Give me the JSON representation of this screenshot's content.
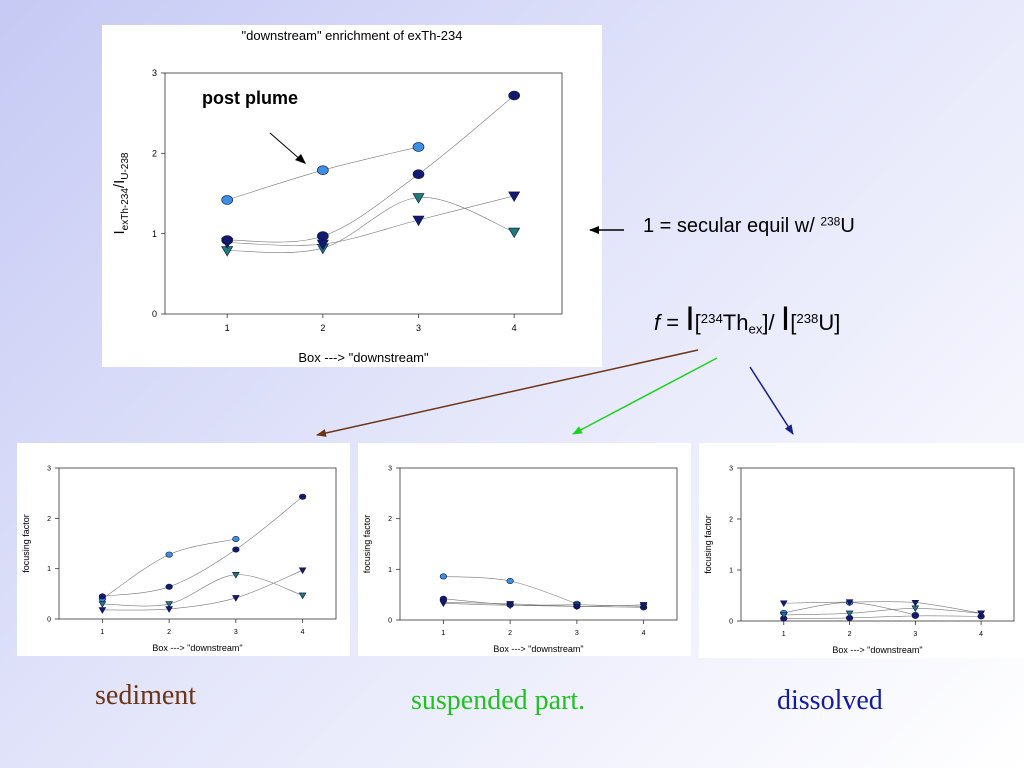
{
  "chart_data": [
    {
      "type": "scatter",
      "title": "\"downstream\" enrichment of exTh-234",
      "xlabel": "Box --->  \"downstream\"",
      "ylabel_parts": [
        "I",
        "exTh-234",
        "/I",
        "U-238"
      ],
      "xlim": [
        0.35,
        4.5
      ],
      "ylim": [
        0,
        3
      ],
      "xticks": [
        1,
        2,
        3,
        4
      ],
      "yticks": [
        0,
        1,
        2,
        3
      ],
      "annotation": "post plume",
      "series": [
        {
          "marker": "circle",
          "color": "#3d8fe0",
          "x": [
            1,
            2,
            3
          ],
          "y": [
            1.42,
            1.79,
            2.08
          ]
        },
        {
          "marker": "circle",
          "color": "#141a6e",
          "x": [
            1,
            2,
            3,
            4
          ],
          "y": [
            0.92,
            0.97,
            1.74,
            2.72
          ]
        },
        {
          "marker": "triangle-down",
          "color": "#1f7a78",
          "x": [
            1,
            2,
            3,
            4
          ],
          "y": [
            0.79,
            0.82,
            1.45,
            1.02
          ]
        },
        {
          "marker": "triangle-down",
          "color": "#141a6e",
          "x": [
            1,
            2,
            3,
            4
          ],
          "y": [
            0.89,
            0.87,
            1.17,
            1.47
          ]
        }
      ]
    },
    {
      "type": "scatter",
      "xlabel": "Box --->  \"downstream\"",
      "ylabel": "focusing factor",
      "xlim": [
        0.35,
        4.5
      ],
      "ylim": [
        0,
        3
      ],
      "xticks": [
        1,
        2,
        3,
        4
      ],
      "yticks": [
        0,
        1,
        2,
        3
      ],
      "series": [
        {
          "marker": "circle",
          "color": "#3d8fe0",
          "x": [
            1,
            2,
            3
          ],
          "y": [
            0.4,
            1.28,
            1.59
          ]
        },
        {
          "marker": "circle",
          "color": "#141a6e",
          "x": [
            1,
            2,
            3,
            4
          ],
          "y": [
            0.45,
            0.64,
            1.38,
            2.43
          ]
        },
        {
          "marker": "triangle-down",
          "color": "#1f7a78",
          "x": [
            1,
            2,
            3,
            4
          ],
          "y": [
            0.3,
            0.3,
            0.88,
            0.47
          ]
        },
        {
          "marker": "triangle-down",
          "color": "#141a6e",
          "x": [
            1,
            2,
            3,
            4
          ],
          "y": [
            0.18,
            0.2,
            0.42,
            0.97
          ]
        }
      ]
    },
    {
      "type": "scatter",
      "xlabel": "Box --->  \"downstream\"",
      "ylabel": "focusing factor",
      "xlim": [
        0.35,
        4.5
      ],
      "ylim": [
        0,
        3
      ],
      "xticks": [
        1,
        2,
        3,
        4
      ],
      "yticks": [
        0,
        1,
        2,
        3
      ],
      "series": [
        {
          "marker": "circle",
          "color": "#3d8fe0",
          "x": [
            1,
            2,
            3
          ],
          "y": [
            0.86,
            0.77,
            0.32
          ]
        },
        {
          "marker": "circle",
          "color": "#141a6e",
          "x": [
            1,
            2,
            3,
            4
          ],
          "y": [
            0.42,
            0.3,
            0.27,
            0.25
          ]
        },
        {
          "marker": "triangle-down",
          "color": "#1f7a78",
          "x": [
            1,
            2,
            3,
            4
          ],
          "y": [
            0.33,
            0.29,
            0.3,
            0.27
          ]
        },
        {
          "marker": "triangle-down",
          "color": "#141a6e",
          "x": [
            1,
            2,
            3,
            4
          ],
          "y": [
            0.35,
            0.32,
            0.27,
            0.3
          ]
        }
      ]
    },
    {
      "type": "scatter",
      "xlabel": "Box --->  \"downstream\"",
      "ylabel": "focusing factor",
      "xlim": [
        0.35,
        4.5
      ],
      "ylim": [
        0,
        3
      ],
      "xticks": [
        1,
        2,
        3,
        4
      ],
      "yticks": [
        0,
        1,
        2,
        3
      ],
      "series": [
        {
          "marker": "circle",
          "color": "#3d8fe0",
          "x": [
            1,
            2,
            3
          ],
          "y": [
            0.16,
            0.36,
            0.12
          ]
        },
        {
          "marker": "circle",
          "color": "#141a6e",
          "x": [
            1,
            2,
            3,
            4
          ],
          "y": [
            0.05,
            0.06,
            0.1,
            0.09
          ]
        },
        {
          "marker": "triangle-down",
          "color": "#1f7a78",
          "x": [
            1,
            2,
            3,
            4
          ],
          "y": [
            0.12,
            0.15,
            0.25,
            0.15
          ]
        },
        {
          "marker": "triangle-down",
          "color": "#141a6e",
          "x": [
            1,
            2,
            3,
            4
          ],
          "y": [
            0.35,
            0.37,
            0.36,
            0.15
          ]
        }
      ]
    }
  ],
  "annotations": {
    "secular_pre": "1 = secular equil w/ ",
    "secular_sup": "238",
    "secular_post": "U",
    "formula": {
      "f": "f",
      "eq": " = ",
      "i1": "I",
      "br1": "[",
      "sup1": "234",
      "th": "Th",
      "sub_ex": "ex",
      "br1_close": "]",
      "slash": "/ ",
      "i2": "I",
      "br2": "[",
      "sup2": "238",
      "u": "U]"
    }
  },
  "captions": {
    "sediment": "sediment",
    "suspended": "suspended part.",
    "dissolved": "dissolved"
  },
  "colors": {
    "sediment": "#6b3416",
    "suspended": "#1fc21f",
    "dissolved": "#141aa8",
    "arrow_sediment": "#6b3416",
    "arrow_suspended": "#1fd11f",
    "arrow_dissolved": "#16208f"
  }
}
